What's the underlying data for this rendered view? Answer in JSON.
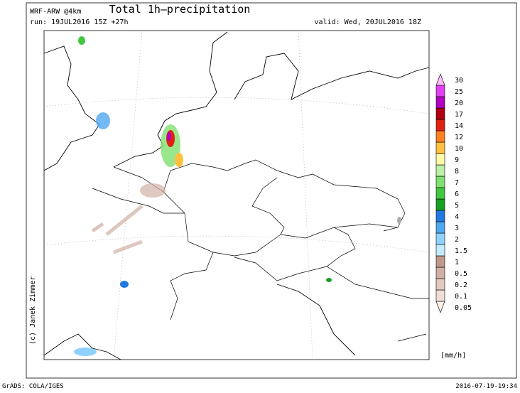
{
  "header": {
    "model": "WRF-ARW @4km",
    "title": "Total 1h–precipitation",
    "run": "run: 19JUL2016 15Z +27h",
    "valid": "valid: Wed, 20JUL2016 18Z"
  },
  "legend": {
    "unit": "[mm/h]",
    "levels": [
      {
        "label": "0.05",
        "color": "#fdf0e8"
      },
      {
        "label": "0.1",
        "color": "#f1ddd3"
      },
      {
        "label": "0.2",
        "color": "#e2c8be"
      },
      {
        "label": "0.5",
        "color": "#d0b0a4"
      },
      {
        "label": "1",
        "color": "#bf9a8c"
      },
      {
        "label": "1.5",
        "color": "#c2ecff"
      },
      {
        "label": "2",
        "color": "#90d2ff"
      },
      {
        "label": "3",
        "color": "#50a8f0"
      },
      {
        "label": "4",
        "color": "#2078e0"
      },
      {
        "label": "5",
        "color": "#18a020"
      },
      {
        "label": "6",
        "color": "#40c840"
      },
      {
        "label": "7",
        "color": "#80e070"
      },
      {
        "label": "8",
        "color": "#bcf0a4"
      },
      {
        "label": "9",
        "color": "#fff8a8"
      },
      {
        "label": "10",
        "color": "#ffc040"
      },
      {
        "label": "12",
        "color": "#ff8020"
      },
      {
        "label": "14",
        "color": "#e02010"
      },
      {
        "label": "17",
        "color": "#b00010"
      },
      {
        "label": "20",
        "color": "#b000c0"
      },
      {
        "label": "25",
        "color": "#e040f0"
      },
      {
        "label": "30",
        "color": "#ffb8ff"
      }
    ]
  },
  "credit": "(c) Janek Zimmer",
  "footer": {
    "left": "GrADS: COLA/IGES",
    "right": "2016-07-19-19:34"
  }
}
